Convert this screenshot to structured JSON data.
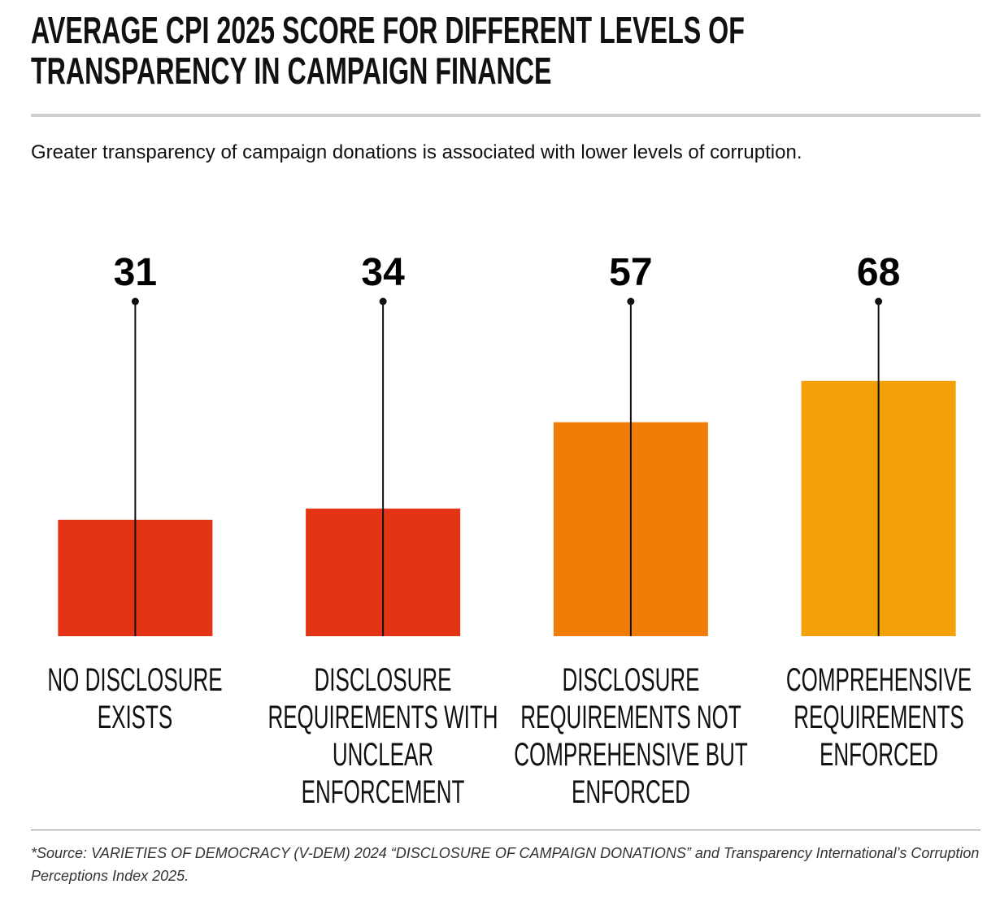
{
  "chart_data": {
    "type": "bar",
    "title": "AVERAGE CPI 2025 SCORE FOR DIFFERENT LEVELS OF TRANSPARENCY IN CAMPAIGN FINANCE",
    "subtitle": "Greater transparency of campaign donations is associated with lower levels of corruption.",
    "categories": [
      "NO DISCLOSURE EXISTS",
      "DISCLOSURE REQUIREMENTS WITH UNCLEAR ENFORCEMENT",
      "DISCLOSURE REQUIREMENTS NOT COMPREHENSIVE BUT ENFORCED",
      "COMPREHENSIVE REQUIREMENTS ENFORCED"
    ],
    "values": [
      31,
      34,
      57,
      68
    ],
    "colors": [
      "#e33416",
      "#e33416",
      "#f07d08",
      "#f4a008"
    ],
    "ylim": [
      0,
      100
    ],
    "source": "*Source: VARIETIES OF DEMOCRACY (V-DEM) 2024 “DISCLOSURE OF CAMPAIGN DONATIONS”  and Transparency International’s Corruption Perceptions Index 2025."
  }
}
